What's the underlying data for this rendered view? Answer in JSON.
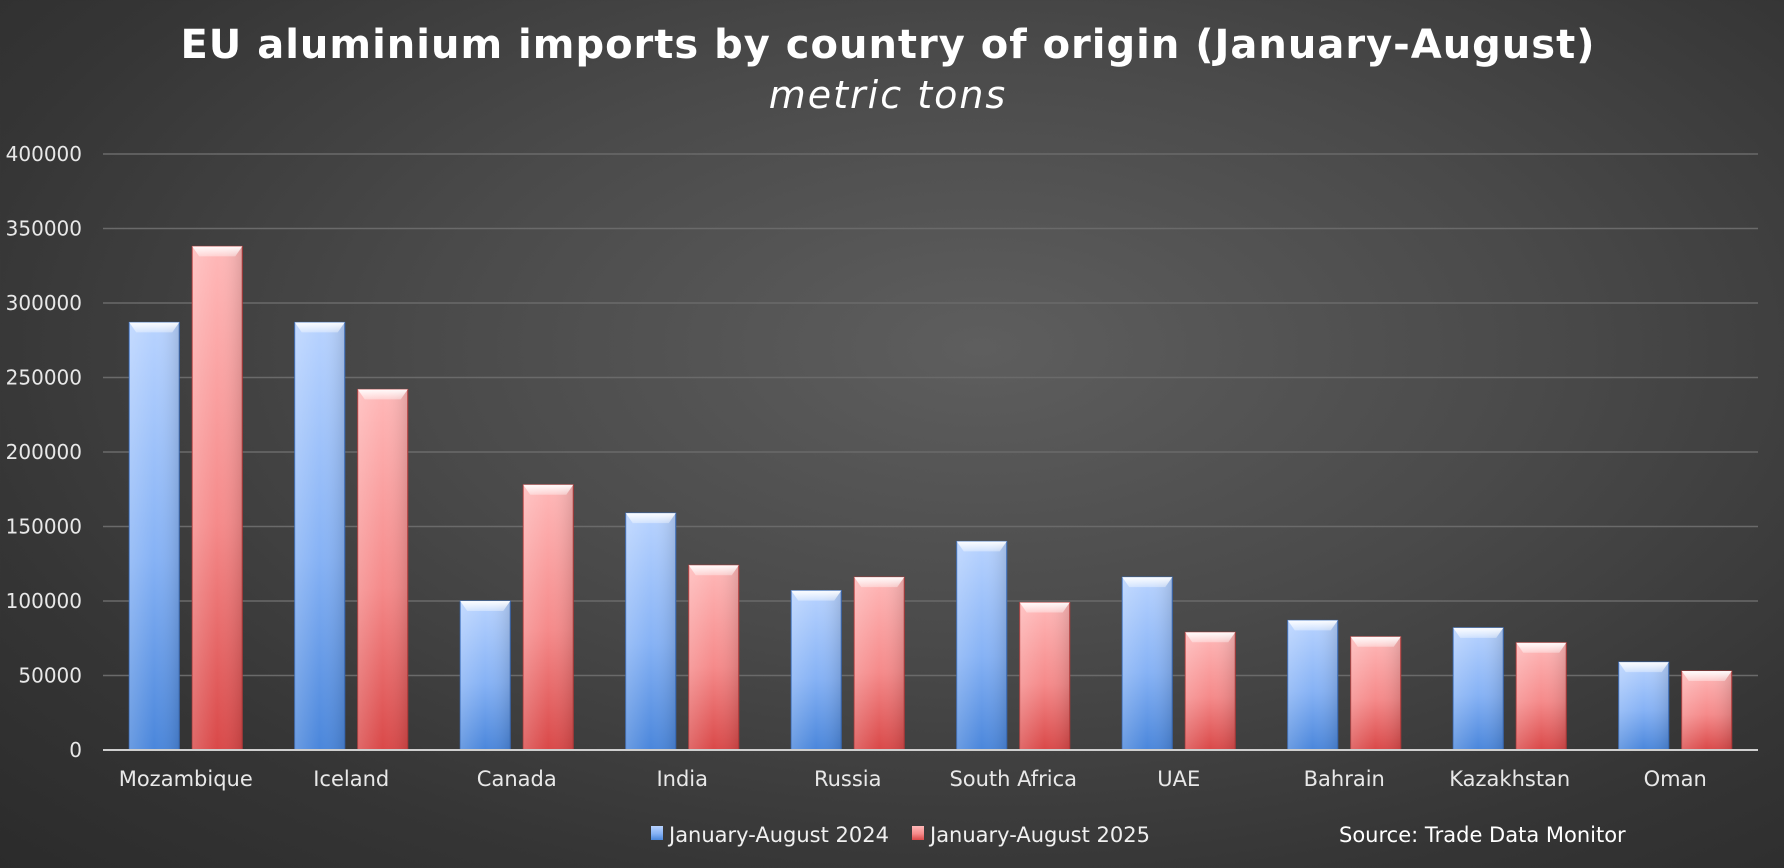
{
  "chart_data": {
    "type": "bar",
    "title": "EU aluminium imports by country of origin (January-August)",
    "subtitle": "metric tons",
    "xlabel": "",
    "ylabel": "",
    "ylim": [
      0,
      400000
    ],
    "yticks": [
      0,
      50000,
      100000,
      150000,
      200000,
      250000,
      300000,
      350000,
      400000
    ],
    "grid": true,
    "legend_position": "bottom",
    "categories": [
      "Mozambique",
      "Iceland",
      "Canada",
      "India",
      "Russia",
      "South Africa",
      "UAE",
      "Bahrain",
      "Kazakhstan",
      "Oman"
    ],
    "series": [
      {
        "name": "January-August 2024",
        "color": "#6fa3ee",
        "values": [
          287000,
          287000,
          100000,
          159000,
          107000,
          140000,
          116000,
          87000,
          82000,
          59000
        ]
      },
      {
        "name": "January-August 2025",
        "color": "#f07f7f",
        "values": [
          338000,
          242000,
          178000,
          124000,
          116000,
          99000,
          79000,
          76000,
          72000,
          53000
        ]
      }
    ],
    "source": "Source: Trade Data Monitor"
  }
}
